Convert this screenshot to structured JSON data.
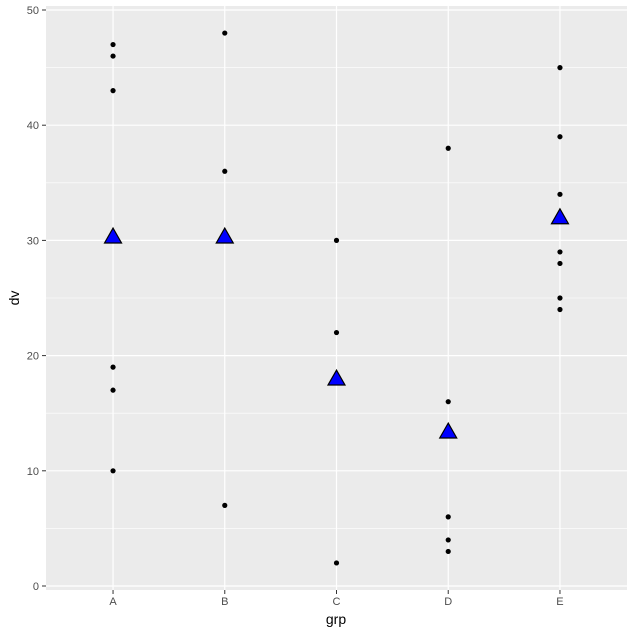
{
  "chart_data": {
    "type": "scatter",
    "title": "",
    "xlabel": "grp",
    "ylabel": "dv",
    "categories": [
      "A",
      "B",
      "C",
      "D",
      "E"
    ],
    "ylim": [
      0,
      50
    ],
    "yticks": [
      0,
      10,
      20,
      30,
      40,
      50
    ],
    "grid": true,
    "points": {
      "A": [
        47,
        46,
        43,
        19,
        17,
        10
      ],
      "B": [
        48,
        36,
        7
      ],
      "C": [
        30,
        22,
        2
      ],
      "D": [
        38,
        16,
        6,
        4,
        3
      ],
      "E": [
        45,
        39,
        34,
        29,
        28,
        25,
        24
      ]
    },
    "means": {
      "A": 30.33,
      "B": 30.33,
      "C": 18,
      "D": 13.4,
      "E": 32
    },
    "colors": {
      "panel": "#EBEBEB",
      "grid": "#FFFFFF",
      "point": "#000000",
      "mean_fill": "#0000FF",
      "mean_stroke": "#000000"
    }
  }
}
